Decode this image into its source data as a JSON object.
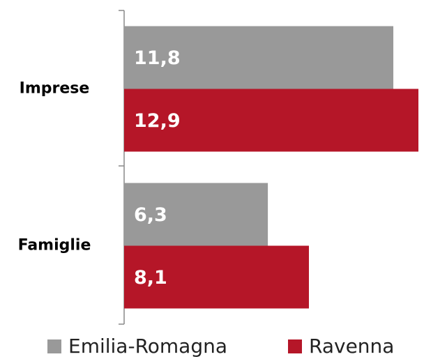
{
  "chart_data": {
    "type": "bar",
    "orientation": "horizontal",
    "categories": [
      "Imprese",
      "Famiglie"
    ],
    "series": [
      {
        "name": "Emilia-Romagna",
        "color": "#999999",
        "values": [
          11.8,
          6.3
        ],
        "value_labels": [
          "11,8",
          "6,3"
        ]
      },
      {
        "name": "Ravenna",
        "color": "#b51628",
        "values": [
          12.9,
          8.1
        ],
        "value_labels": [
          "12,9",
          "8,1"
        ]
      }
    ],
    "xlim": [
      0,
      14
    ],
    "legend": "bottom"
  }
}
